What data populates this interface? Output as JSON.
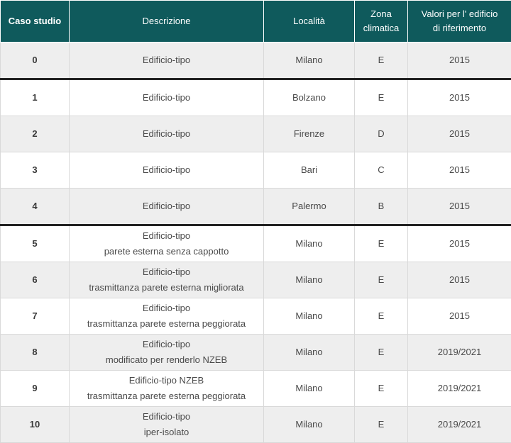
{
  "headers": {
    "caso": "Caso studio",
    "descrizione": "Descrizione",
    "localita": "Località",
    "zona_l1": "Zona",
    "zona_l2": "climatica",
    "valori_l1": "Valori per l' edificio",
    "valori_l2": "di riferimento"
  },
  "rows": [
    {
      "caso": "0",
      "desc1": "Edificio-tipo",
      "desc2": "",
      "localita": "Milano",
      "zona": "E",
      "valori": "2015"
    },
    {
      "caso": "1",
      "desc1": "Edificio-tipo",
      "desc2": "",
      "localita": "Bolzano",
      "zona": "E",
      "valori": "2015"
    },
    {
      "caso": "2",
      "desc1": "Edificio-tipo",
      "desc2": "",
      "localita": "Firenze",
      "zona": "D",
      "valori": "2015"
    },
    {
      "caso": "3",
      "desc1": "Edificio-tipo",
      "desc2": "",
      "localita": "Bari",
      "zona": "C",
      "valori": "2015"
    },
    {
      "caso": "4",
      "desc1": "Edificio-tipo",
      "desc2": "",
      "localita": "Palermo",
      "zona": "B",
      "valori": "2015"
    },
    {
      "caso": "5",
      "desc1": "Edificio-tipo",
      "desc2": "parete esterna senza cappotto",
      "localita": "Milano",
      "zona": "E",
      "valori": "2015"
    },
    {
      "caso": "6",
      "desc1": "Edificio-tipo",
      "desc2": "trasmittanza parete esterna migliorata",
      "localita": "Milano",
      "zona": "E",
      "valori": "2015"
    },
    {
      "caso": "7",
      "desc1": "Edificio-tipo",
      "desc2": "trasmittanza parete esterna peggiorata",
      "localita": "Milano",
      "zona": "E",
      "valori": "2015"
    },
    {
      "caso": "8",
      "desc1": "Edificio-tipo",
      "desc2": "modificato per renderlo NZEB",
      "localita": "Milano",
      "zona": "E",
      "valori": "2019/2021"
    },
    {
      "caso": "9",
      "desc1": "Edificio-tipo NZEB",
      "desc2": "trasmittanza parete esterna peggiorata",
      "localita": "Milano",
      "zona": "E",
      "valori": "2019/2021"
    },
    {
      "caso": "10",
      "desc1": "Edificio-tipo",
      "desc2": "iper-isolato",
      "localita": "Milano",
      "zona": "E",
      "valori": "2019/2021"
    }
  ],
  "colors": {
    "header_bg": "#0f5a5c",
    "row_shade": "#eeeeee",
    "group_separator": "#222222"
  }
}
